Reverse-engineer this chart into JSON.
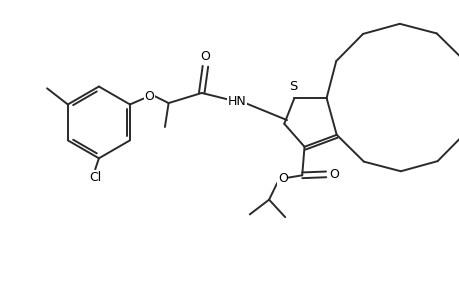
{
  "background_color": "#ffffff",
  "line_color": "#2a2a2a",
  "line_width": 1.4,
  "font_size": 8.5,
  "fig_width": 4.6,
  "fig_height": 3.0,
  "dpi": 100,
  "xlim": [
    0,
    10
  ],
  "ylim": [
    0,
    6.5
  ]
}
